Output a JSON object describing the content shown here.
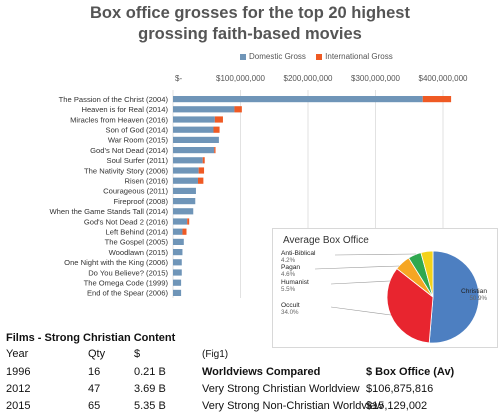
{
  "chart_data": [
    {
      "type": "bar",
      "orientation": "horizontal",
      "stacked": true,
      "title_lines": [
        "Box office grosses for the top 20 highest",
        "grossing faith-based movies"
      ],
      "legend": [
        {
          "name": "Domestic Gross",
          "color": "#6f95b8"
        },
        {
          "name": "International Gross",
          "color": "#ef5a24"
        }
      ],
      "legend_position": "top",
      "x_ticks": [
        "$-",
        "$100,000,000",
        "$200,000,000",
        "$300,000,000",
        "$400,000,000"
      ],
      "x_tick_values": [
        0,
        100000000,
        200000000,
        300000000,
        400000000
      ],
      "xlim": [
        0,
        440000000
      ],
      "grid": true,
      "categories": [
        "The Passion of the Christ (2004)",
        "Heaven is for Real (2014)",
        "Miracles from Heaven (2016)",
        "Son of God (2014)",
        "War Room (2015)",
        "God's Not Dead (2014)",
        "Soul Surfer (2011)",
        "The Nativity Story (2006)",
        "Risen (2016)",
        "Courageous (2011)",
        "Fireproof (2008)",
        "When the Game Stands Tall (2014)",
        "God's Not Dead 2 (2016)",
        "Left Behind (2014)",
        "The Gospel (2005)",
        "Woodlawn (2015)",
        "One Night with the King (2006)",
        "Do You Believe? (2015)",
        "The Omega Code (1999)",
        "End of the Spear (2006)"
      ],
      "series": [
        {
          "name": "Domestic Gross",
          "values": [
            370000000,
            91000000,
            62000000,
            60000000,
            68000000,
            61000000,
            44000000,
            38000000,
            37000000,
            34000000,
            33000000,
            30000000,
            21000000,
            14000000,
            16000000,
            14000000,
            13000000,
            13000000,
            12000000,
            12000000
          ]
        },
        {
          "name": "International Gross",
          "values": [
            42000000,
            11000000,
            12000000,
            9000000,
            0,
            2000000,
            3000000,
            8000000,
            8000000,
            0,
            0,
            0,
            3000000,
            6000000,
            0,
            0,
            0,
            0,
            0,
            0
          ]
        }
      ]
    },
    {
      "type": "pie",
      "title": "Average Box Office",
      "slices": [
        {
          "label": "Christian",
          "value": 50.9,
          "pct_label": "50.9%",
          "color": "#4d7fc1"
        },
        {
          "label": "Occult",
          "value": 34.0,
          "pct_label": "34.0%",
          "color": "#e8252f"
        },
        {
          "label": "Humanist",
          "value": 5.5,
          "pct_label": "5.5%",
          "color": "#f6a623"
        },
        {
          "label": "Pagan",
          "value": 4.6,
          "pct_label": "4.6%",
          "color": "#2fa84f"
        },
        {
          "label": "Anti-Biblical",
          "value": 4.2,
          "pct_label": "4.2%",
          "color": "#f3d21a"
        }
      ]
    },
    {
      "type": "table",
      "title": "Films - Strong Christian Content",
      "headers": [
        "Year",
        "Qty",
        "$"
      ],
      "rows": [
        [
          "1996",
          "16",
          "0.21 B"
        ],
        [
          "2012",
          "47",
          "3.69 B"
        ],
        [
          "2015",
          "65",
          "5.35 B"
        ]
      ],
      "fig_label": "(Fig1)",
      "worldviews_headers": [
        "Worldviews Compared",
        "$ Box Office (Av)"
      ],
      "worldviews_rows": [
        [
          "Very Strong Christian Worldview",
          "$106,875,816"
        ],
        [
          "Very Strong Non-Christian Worldview",
          "$15,129,002"
        ]
      ]
    }
  ]
}
